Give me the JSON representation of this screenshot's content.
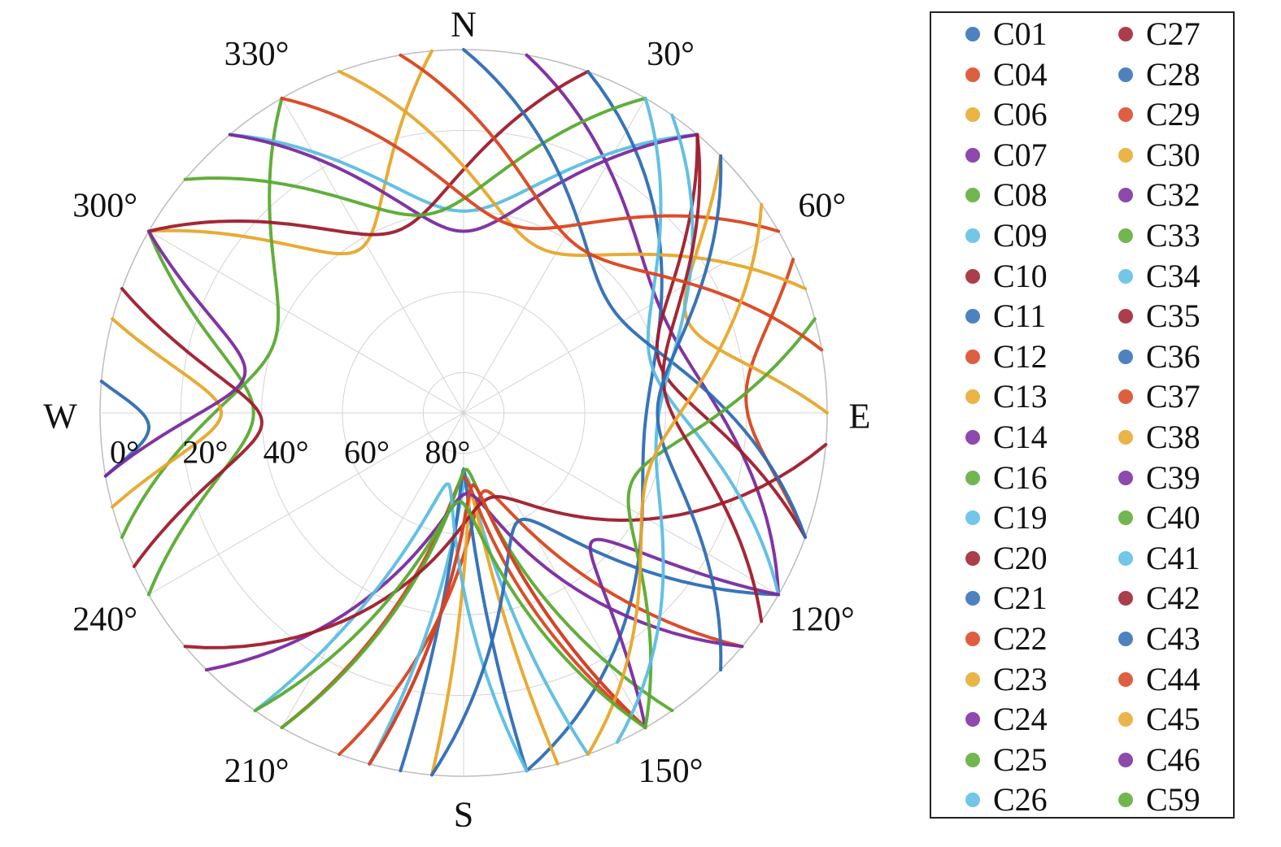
{
  "chart_data": {
    "type": "polar-skyplot",
    "directions": {
      "N": "N",
      "E": "E",
      "S": "S",
      "W": "W"
    },
    "azimuth_ticks": [
      {
        "azimuth": 30,
        "label": "30°"
      },
      {
        "azimuth": 60,
        "label": "60°"
      },
      {
        "azimuth": 120,
        "label": "120°"
      },
      {
        "azimuth": 150,
        "label": "150°"
      },
      {
        "azimuth": 210,
        "label": "210°"
      },
      {
        "azimuth": 240,
        "label": "240°"
      },
      {
        "azimuth": 300,
        "label": "300°"
      },
      {
        "azimuth": 330,
        "label": "330°"
      }
    ],
    "elevation_ticks": [
      {
        "elevation": 0,
        "label": "0°"
      },
      {
        "elevation": 20,
        "label": "20°"
      },
      {
        "elevation": 40,
        "label": "40°"
      },
      {
        "elevation": 60,
        "label": "60°"
      },
      {
        "elevation": 80,
        "label": "80°"
      }
    ],
    "elevation_range": [
      0,
      90
    ],
    "grid": true,
    "legend_position": "right",
    "series": [
      {
        "name": "C01",
        "color": "#2e6db4",
        "track": {
          "rise_az": 260,
          "set_az": 275,
          "max_el": 12
        }
      },
      {
        "name": "C04",
        "color": "#d9441f",
        "track": {
          "rise_az": 65,
          "set_az": 110,
          "max_el": 20
        }
      },
      {
        "name": "C06",
        "color": "#e7a72a",
        "track": {
          "rise_az": 300,
          "set_az": 355,
          "max_el": 42
        }
      },
      {
        "name": "C07",
        "color": "#7a2a9e",
        "track": {
          "rise_az": 10,
          "set_az": 120,
          "max_el": 35
        }
      },
      {
        "name": "C08",
        "color": "#5aaa32",
        "track": {
          "rise_az": 250,
          "set_az": 330,
          "max_el": 40
        }
      },
      {
        "name": "C09",
        "color": "#5bbde3",
        "track": {
          "rise_az": 320,
          "set_az": 40,
          "max_el": 40
        }
      },
      {
        "name": "C10",
        "color": "#9e1c2c",
        "track": {
          "rise_az": 300,
          "set_az": 20,
          "max_el": 42
        }
      },
      {
        "name": "C11",
        "color": "#2e6db4",
        "track": {
          "rise_az": 20,
          "set_az": 170,
          "max_el": 45
        }
      },
      {
        "name": "C12",
        "color": "#d9441f",
        "track": {
          "rise_az": 200,
          "set_az": 130,
          "max_el": 70
        }
      },
      {
        "name": "C13",
        "color": "#e7a72a",
        "track": {
          "rise_az": 255,
          "set_az": 285,
          "max_el": 30
        }
      },
      {
        "name": "C14",
        "color": "#7a2a9e",
        "track": {
          "rise_az": 195,
          "set_az": 150,
          "max_el": 72
        }
      },
      {
        "name": "C16",
        "color": "#5aaa32",
        "track": {
          "rise_az": 240,
          "set_az": 300,
          "max_el": 38
        }
      },
      {
        "name": "C19",
        "color": "#5bbde3",
        "track": {
          "rise_az": 195,
          "set_az": 160,
          "max_el": 74
        }
      },
      {
        "name": "C20",
        "color": "#9e1c2c",
        "track": {
          "rise_az": 245,
          "set_az": 290,
          "max_el": 40
        }
      },
      {
        "name": "C21",
        "color": "#2e6db4",
        "track": {
          "rise_az": 190,
          "set_az": 170,
          "max_el": 76
        }
      },
      {
        "name": "C22",
        "color": "#d9441f",
        "track": {
          "rise_az": 210,
          "set_az": 150,
          "max_el": 74
        }
      },
      {
        "name": "C23",
        "color": "#e7a72a",
        "track": {
          "rise_az": 185,
          "set_az": 165,
          "max_el": 70
        }
      },
      {
        "name": "C24",
        "color": "#7a2a9e",
        "track": {
          "rise_az": 225,
          "set_az": 130,
          "max_el": 70
        }
      },
      {
        "name": "C25",
        "color": "#5aaa32",
        "track": {
          "rise_az": 210,
          "set_az": 145,
          "max_el": 76
        }
      },
      {
        "name": "C26",
        "color": "#5bbde3",
        "track": {
          "rise_az": 215,
          "set_az": 170,
          "max_el": 72
        }
      },
      {
        "name": "C27",
        "color": "#9e1c2c",
        "track": {
          "rise_az": 230,
          "set_az": 95,
          "max_el": 68
        }
      },
      {
        "name": "C28",
        "color": "#2e6db4",
        "track": {
          "rise_az": 185,
          "set_az": 120,
          "max_el": 60
        }
      },
      {
        "name": "C29",
        "color": "#d9441f",
        "track": {
          "rise_az": 195,
          "set_az": 150,
          "max_el": 72
        }
      },
      {
        "name": "C30",
        "color": "#e7a72a",
        "track": {
          "rise_az": 340,
          "set_az": 70,
          "max_el": 45
        }
      },
      {
        "name": "C32",
        "color": "#7a2a9e",
        "track": {
          "rise_az": 320,
          "set_az": 40,
          "max_el": 45
        }
      },
      {
        "name": "C33",
        "color": "#5aaa32",
        "track": {
          "rise_az": 310,
          "set_az": 30,
          "max_el": 40
        }
      },
      {
        "name": "C34",
        "color": "#5bbde3",
        "track": {
          "rise_az": 30,
          "set_az": 120,
          "max_el": 42
        }
      },
      {
        "name": "C35",
        "color": "#9e1c2c",
        "track": {
          "rise_az": 40,
          "set_az": 110,
          "max_el": 40
        }
      },
      {
        "name": "C36",
        "color": "#2e6db4",
        "track": {
          "rise_az": 0,
          "set_az": 110,
          "max_el": 45
        }
      },
      {
        "name": "C37",
        "color": "#d9441f",
        "track": {
          "rise_az": 330,
          "set_az": 60,
          "max_el": 42
        }
      },
      {
        "name": "C38",
        "color": "#e7a72a",
        "track": {
          "rise_az": 45,
          "set_az": 90,
          "max_el": 30
        }
      },
      {
        "name": "C39",
        "color": "#7a2a9e",
        "track": {
          "rise_az": 150,
          "set_az": 120,
          "max_el": 45
        }
      },
      {
        "name": "C40",
        "color": "#5aaa32",
        "track": {
          "rise_az": 150,
          "set_az": 75,
          "max_el": 45
        }
      },
      {
        "name": "C41",
        "color": "#5bbde3",
        "track": {
          "rise_az": 155,
          "set_az": 35,
          "max_el": 42
        }
      },
      {
        "name": "C42",
        "color": "#9e1c2c",
        "track": {
          "rise_az": 125,
          "set_az": 40,
          "max_el": 40
        }
      },
      {
        "name": "C43",
        "color": "#2e6db4",
        "track": {
          "rise_az": 135,
          "set_az": 45,
          "max_el": 42
        }
      },
      {
        "name": "C44",
        "color": "#d9441f",
        "track": {
          "rise_az": 350,
          "set_az": 80,
          "max_el": 40
        }
      },
      {
        "name": "C45",
        "color": "#e7a72a",
        "track": {
          "rise_az": 160,
          "set_az": 55,
          "max_el": 42
        }
      },
      {
        "name": "C46",
        "color": "#7a2a9e",
        "track": {
          "rise_az": 260,
          "set_az": 300,
          "max_el": 35
        }
      },
      {
        "name": "C59",
        "color": "#5aaa32",
        "track": {
          "rise_az": 215,
          "set_az": 150,
          "max_el": 68
        }
      }
    ]
  }
}
